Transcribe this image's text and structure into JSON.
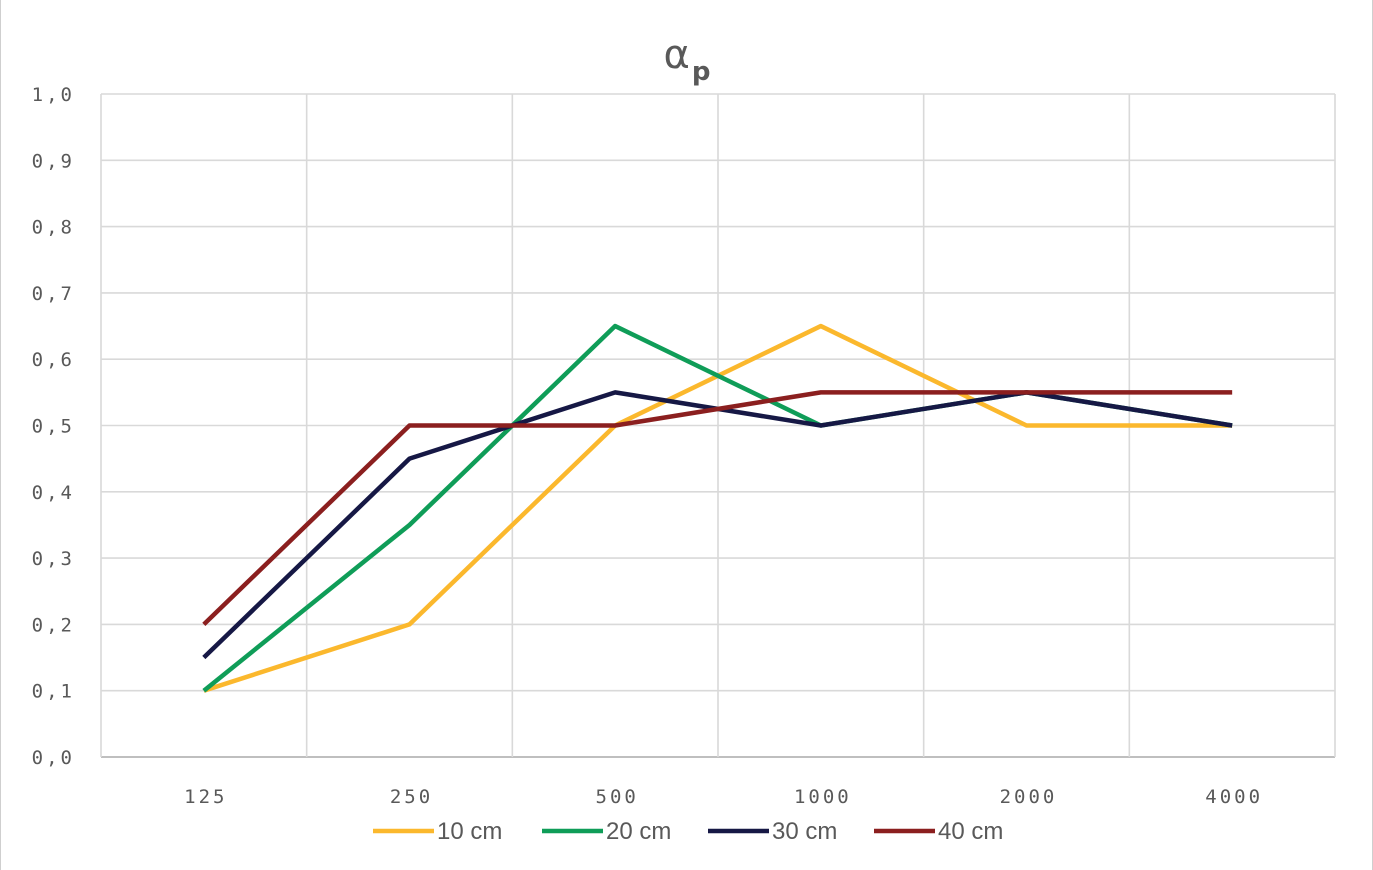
{
  "chart_data": {
    "type": "line",
    "title": "α",
    "title_subscript": "p",
    "xlabel": "",
    "ylabel": "",
    "categories": [
      "125",
      "250",
      "500",
      "1000",
      "2000",
      "4000"
    ],
    "y_tick_labels": [
      "0,0",
      "0,1",
      "0,2",
      "0,3",
      "0,4",
      "0,5",
      "0,6",
      "0,7",
      "0,8",
      "0,9",
      "1,0"
    ],
    "ylim": [
      0,
      1
    ],
    "y_step": 0.1,
    "grid": true,
    "legend_position": "bottom",
    "series": [
      {
        "name": "10 cm",
        "color": "#fbb82d",
        "values": [
          0.1,
          0.2,
          0.5,
          0.65,
          0.5,
          0.5
        ]
      },
      {
        "name": "20 cm",
        "color": "#0f9d58",
        "values": [
          0.1,
          0.35,
          0.65,
          0.5,
          0.55,
          0.5
        ]
      },
      {
        "name": "30 cm",
        "color": "#161845",
        "values": [
          0.15,
          0.45,
          0.55,
          0.5,
          0.55,
          0.5
        ]
      },
      {
        "name": "40 cm",
        "color": "#8b1f1f",
        "values": [
          0.2,
          0.5,
          0.5,
          0.55,
          0.55,
          0.55
        ]
      }
    ]
  }
}
